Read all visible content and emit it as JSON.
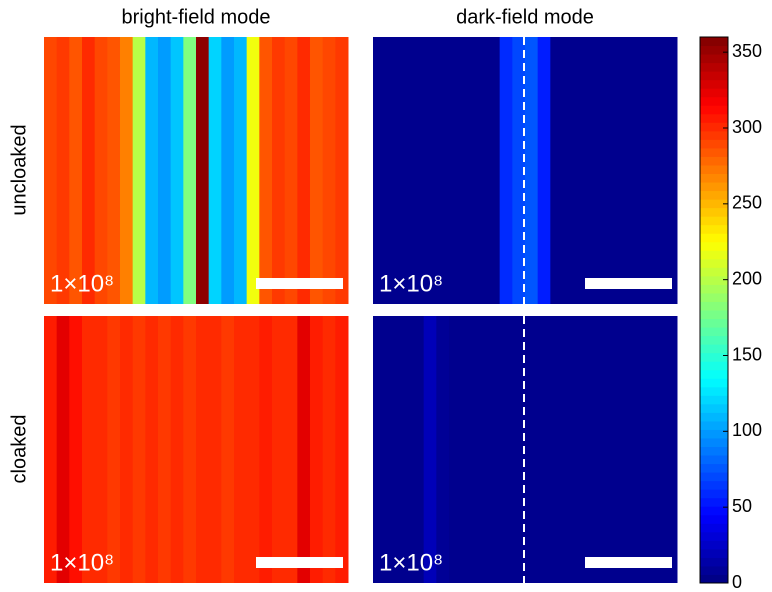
{
  "chart_data": {
    "type": "heatmap",
    "column_titles": [
      "bright-field mode",
      "dark-field mode"
    ],
    "row_titles": [
      "uncloaked",
      "cloaked"
    ],
    "clim": [
      0,
      360
    ],
    "cticks": [
      0,
      50,
      100,
      150,
      200,
      250,
      300,
      350
    ],
    "panels": [
      {
        "label": "1×10⁸",
        "values": [
          290,
          295,
          285,
          300,
          290,
          285,
          270,
          200,
          110,
          100,
          115,
          180,
          355,
          120,
          100,
          110,
          220,
          285,
          295,
          290,
          300,
          285,
          290,
          295
        ]
      },
      {
        "label": "1×10⁸",
        "values": [
          5,
          5,
          5,
          5,
          5,
          5,
          5,
          5,
          5,
          5,
          60,
          70,
          75,
          55,
          5,
          5,
          5,
          5,
          5,
          5,
          5,
          5,
          5,
          5
        ]
      },
      {
        "label": "1×10⁸",
        "values": [
          305,
          325,
          310,
          300,
          300,
          295,
          300,
          295,
          300,
          295,
          300,
          295,
          300,
          300,
          295,
          300,
          300,
          305,
          300,
          300,
          325,
          305,
          300,
          305
        ]
      },
      {
        "label": "1×10⁸",
        "values": [
          5,
          5,
          5,
          5,
          20,
          8,
          5,
          5,
          5,
          5,
          5,
          5,
          5,
          5,
          5,
          5,
          5,
          5,
          5,
          5,
          5,
          5,
          5,
          5
        ]
      }
    ]
  }
}
